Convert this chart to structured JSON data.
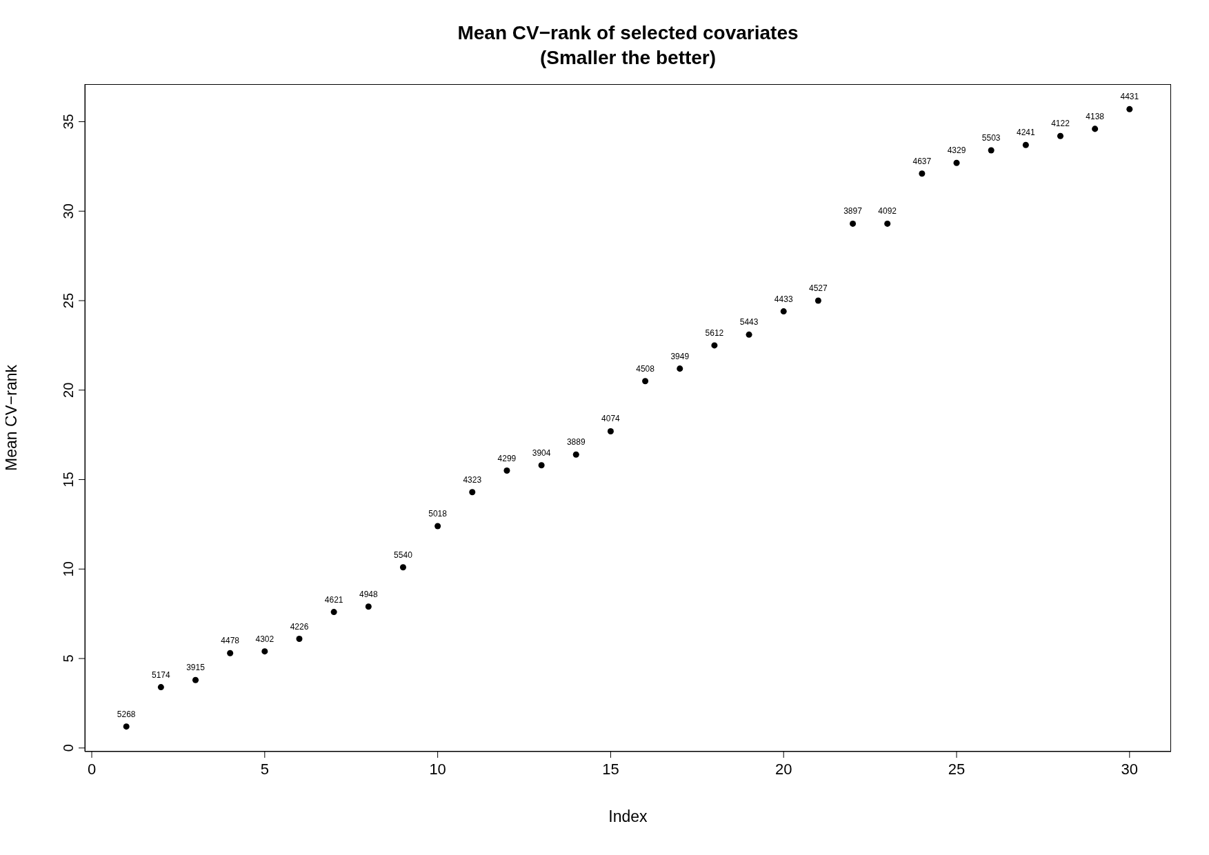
{
  "chart_data": {
    "type": "scatter",
    "title": "Mean CV−rank of selected covariates",
    "subtitle": "(Smaller the better)",
    "xlabel": "Index",
    "ylabel": "Mean CV−rank",
    "x": [
      1,
      2,
      3,
      4,
      5,
      6,
      7,
      8,
      9,
      10,
      11,
      12,
      13,
      14,
      15,
      16,
      17,
      18,
      19,
      20,
      21,
      22,
      23,
      24,
      25,
      26,
      27,
      28,
      29,
      30
    ],
    "series": [
      {
        "color": "#000000",
        "values": [
          1.2,
          3.4,
          3.8,
          5.3,
          5.4,
          6.1,
          7.6,
          7.9,
          10.1,
          12.4,
          14.3,
          15.5,
          15.8,
          16.4,
          17.7,
          20.5,
          21.2,
          22.5,
          23.1,
          24.4,
          25.0,
          29.3,
          29.3,
          32.1,
          32.7,
          33.4,
          33.7,
          34.2,
          34.6,
          35.7
        ]
      }
    ],
    "annotations": [
      {
        "text": "5268",
        "x": 1,
        "y": 1.2
      },
      {
        "text": "5174",
        "x": 2,
        "y": 3.4
      },
      {
        "text": "3915",
        "x": 3,
        "y": 3.8
      },
      {
        "text": "4478",
        "x": 4,
        "y": 5.3
      },
      {
        "text": "4302",
        "x": 5,
        "y": 5.4
      },
      {
        "text": "4226",
        "x": 6,
        "y": 6.1
      },
      {
        "text": "4621",
        "x": 7,
        "y": 7.6
      },
      {
        "text": "4948",
        "x": 8,
        "y": 7.9
      },
      {
        "text": "5540",
        "x": 9,
        "y": 10.1
      },
      {
        "text": "5018",
        "x": 10,
        "y": 12.4
      },
      {
        "text": "4323",
        "x": 11,
        "y": 14.3
      },
      {
        "text": "4299",
        "x": 12,
        "y": 15.5
      },
      {
        "text": "3904",
        "x": 13,
        "y": 15.8
      },
      {
        "text": "3889",
        "x": 14,
        "y": 16.4
      },
      {
        "text": "4074",
        "x": 15,
        "y": 17.7
      },
      {
        "text": "4508",
        "x": 16,
        "y": 20.5
      },
      {
        "text": "3949",
        "x": 17,
        "y": 21.2
      },
      {
        "text": "5612",
        "x": 18,
        "y": 22.5
      },
      {
        "text": "5443",
        "x": 19,
        "y": 23.1
      },
      {
        "text": "4433",
        "x": 20,
        "y": 24.4
      },
      {
        "text": "4527",
        "x": 21,
        "y": 25.0
      },
      {
        "text": "3897",
        "x": 22,
        "y": 29.3
      },
      {
        "text": "4092",
        "x": 23,
        "y": 29.3
      },
      {
        "text": "4637",
        "x": 24,
        "y": 32.1
      },
      {
        "text": "4329",
        "x": 25,
        "y": 32.7
      },
      {
        "text": "5503",
        "x": 26,
        "y": 33.4
      },
      {
        "text": "4241",
        "x": 27,
        "y": 33.7
      },
      {
        "text": "4122",
        "x": 28,
        "y": 34.2
      },
      {
        "text": "4138",
        "x": 29,
        "y": 34.6
      },
      {
        "text": "4431",
        "x": 30,
        "y": 35.7
      }
    ],
    "marker": "circle",
    "xlim": [
      -0.2,
      31.2
    ],
    "ylim": [
      -0.2,
      37.1
    ],
    "xticks": [
      0,
      5,
      10,
      15,
      20,
      25,
      30
    ],
    "yticks": [
      0,
      5,
      10,
      15,
      20,
      25,
      30,
      35
    ]
  }
}
